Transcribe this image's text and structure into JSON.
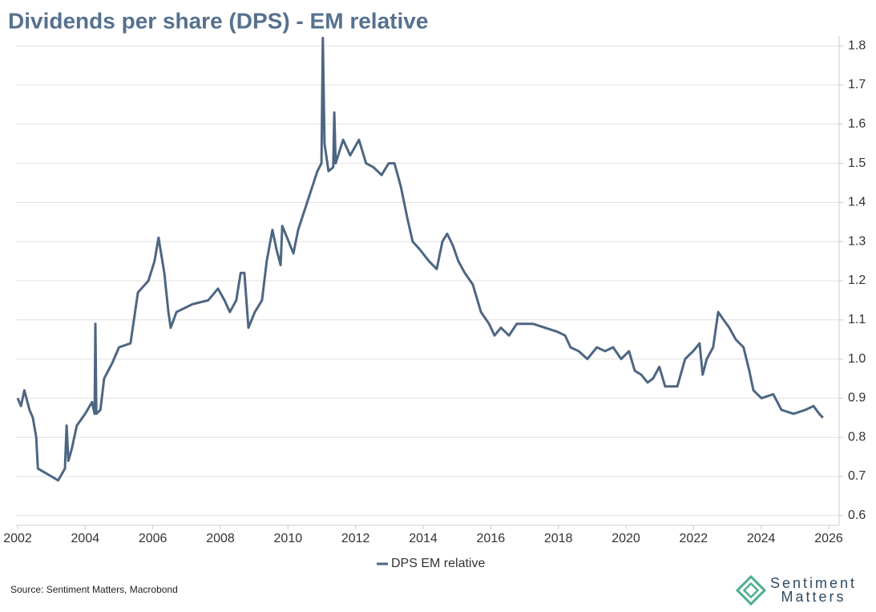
{
  "chart_data": {
    "type": "line",
    "title": "Dividends per share (DPS) - EM relative",
    "x": [
      2002.0,
      2002.1,
      2002.2,
      2002.35,
      2002.45,
      2002.55,
      2002.6,
      2002.8,
      2003.0,
      2003.2,
      2003.4,
      2003.45,
      2003.5,
      2003.6,
      2003.75,
      2004.0,
      2004.2,
      2004.28,
      2004.3,
      2004.33,
      2004.45,
      2004.56,
      2004.8,
      2005.0,
      2005.34,
      2005.56,
      2005.87,
      2006.05,
      2006.17,
      2006.34,
      2006.46,
      2006.53,
      2006.7,
      2007.17,
      2007.64,
      2007.93,
      2008.12,
      2008.28,
      2008.47,
      2008.6,
      2008.71,
      2008.83,
      2009.02,
      2009.23,
      2009.37,
      2009.54,
      2009.66,
      2009.78,
      2009.83,
      2010.02,
      2010.16,
      2010.3,
      2010.49,
      2010.68,
      2010.87,
      2010.99,
      2011.03,
      2011.08,
      2011.2,
      2011.34,
      2011.37,
      2011.41,
      2011.63,
      2011.84,
      2012.1,
      2012.31,
      2012.53,
      2012.77,
      2012.98,
      2013.15,
      2013.34,
      2013.53,
      2013.69,
      2013.9,
      2014.17,
      2014.4,
      2014.57,
      2014.71,
      2014.88,
      2015.04,
      2015.23,
      2015.47,
      2015.71,
      2015.95,
      2016.11,
      2016.3,
      2016.54,
      2016.77,
      2017.01,
      2017.25,
      2017.6,
      2017.96,
      2018.2,
      2018.36,
      2018.6,
      2018.86,
      2019.14,
      2019.38,
      2019.62,
      2019.86,
      2020.09,
      2020.26,
      2020.45,
      2020.64,
      2020.8,
      2020.99,
      2021.16,
      2021.52,
      2021.75,
      2021.99,
      2022.18,
      2022.27,
      2022.39,
      2022.58,
      2022.73,
      2022.89,
      2023.06,
      2023.25,
      2023.48,
      2023.65,
      2023.77,
      2024.01,
      2024.36,
      2024.6,
      2024.96,
      2025.31,
      2025.55,
      2025.72,
      2025.83
    ],
    "series": [
      {
        "name": "DPS EM relative",
        "color": "#4d6682",
        "values": [
          0.9,
          0.88,
          0.92,
          0.87,
          0.85,
          0.8,
          0.72,
          0.71,
          0.7,
          0.69,
          0.72,
          0.83,
          0.74,
          0.77,
          0.83,
          0.86,
          0.89,
          0.86,
          1.09,
          0.86,
          0.87,
          0.95,
          0.99,
          1.03,
          1.04,
          1.17,
          1.2,
          1.25,
          1.31,
          1.22,
          1.12,
          1.08,
          1.12,
          1.14,
          1.15,
          1.18,
          1.15,
          1.12,
          1.15,
          1.22,
          1.22,
          1.08,
          1.12,
          1.15,
          1.25,
          1.33,
          1.28,
          1.24,
          1.34,
          1.3,
          1.27,
          1.33,
          1.38,
          1.43,
          1.48,
          1.5,
          1.82,
          1.55,
          1.48,
          1.49,
          1.63,
          1.5,
          1.56,
          1.52,
          1.56,
          1.5,
          1.49,
          1.47,
          1.5,
          1.5,
          1.44,
          1.36,
          1.3,
          1.28,
          1.25,
          1.23,
          1.3,
          1.32,
          1.29,
          1.25,
          1.22,
          1.19,
          1.12,
          1.09,
          1.06,
          1.08,
          1.06,
          1.09,
          1.09,
          1.09,
          1.08,
          1.07,
          1.06,
          1.03,
          1.02,
          1.0,
          1.03,
          1.02,
          1.03,
          1.0,
          1.02,
          0.97,
          0.96,
          0.94,
          0.95,
          0.98,
          0.93,
          0.93,
          1.0,
          1.02,
          1.04,
          0.96,
          1.0,
          1.03,
          1.12,
          1.1,
          1.08,
          1.05,
          1.03,
          0.97,
          0.92,
          0.9,
          0.91,
          0.87,
          0.86,
          0.87,
          0.88,
          0.86,
          0.85
        ]
      }
    ],
    "xlim": [
      2002,
      2026
    ],
    "xticks": [
      2002,
      2004,
      2006,
      2008,
      2010,
      2012,
      2014,
      2016,
      2018,
      2020,
      2022,
      2024,
      2026
    ],
    "ylim": [
      0.575,
      1.825
    ],
    "yticks": [
      0.6,
      0.7,
      0.8,
      0.9,
      {
        "value": 1,
        "label": "1.0"
      },
      1.1,
      1.2,
      1.3,
      1.4,
      1.5,
      1.6,
      1.7,
      1.8
    ],
    "grid": true,
    "legend": "bottom"
  },
  "source": "Source: Sentiment Matters, Macrobond",
  "logo": [
    "Sentiment",
    "Matters"
  ]
}
